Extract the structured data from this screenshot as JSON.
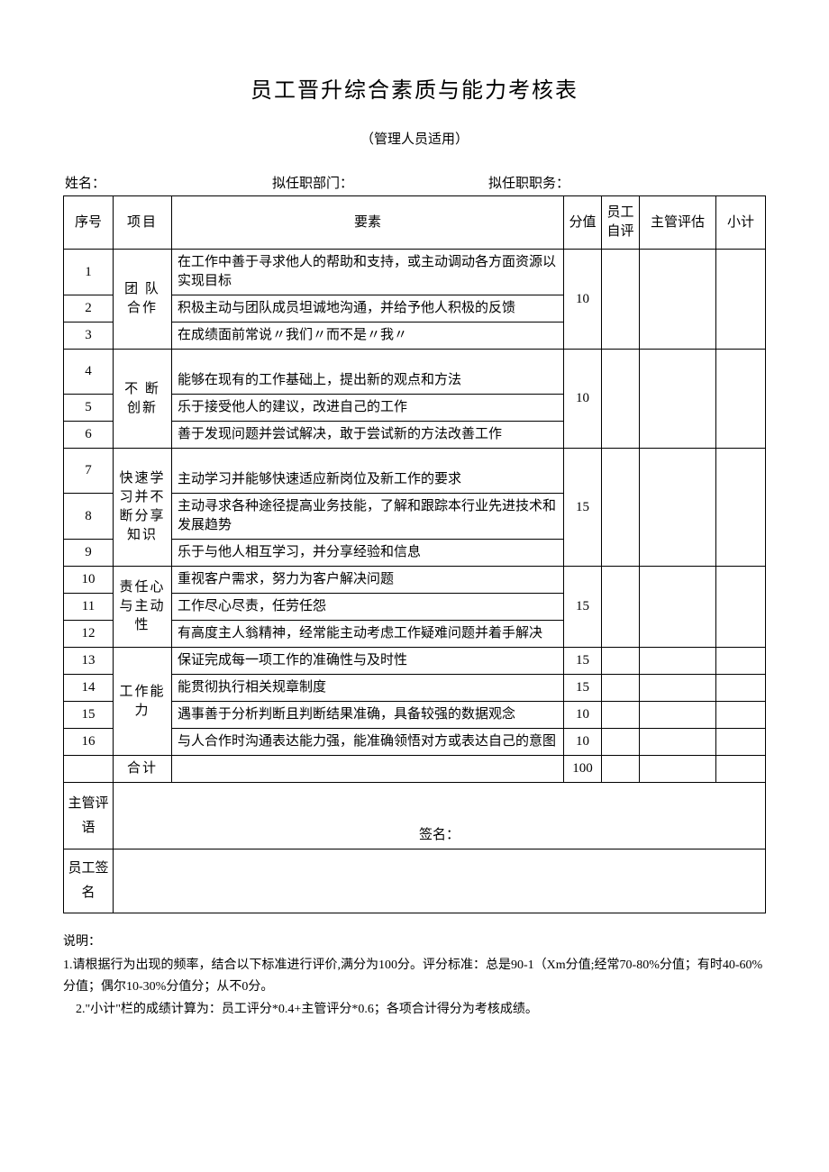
{
  "page": {
    "title": "员工晋升综合素质与能力考核表",
    "subtitle": "（管理人员适用）",
    "bg_color": "#ffffff",
    "border_color": "#000000",
    "text_color": "#000000"
  },
  "form_header": {
    "name_label": "姓名：",
    "dept_label": "拟任职部门：",
    "duty_label": "拟任职职务："
  },
  "columns": {
    "seq": "序号",
    "category": "项目",
    "element": "要素",
    "score": "分值",
    "self_eval": "员工自评",
    "mgr_eval": "主管评估",
    "subtotal": "小计"
  },
  "categories": [
    {
      "name": "团 队 合作",
      "score": "10",
      "rows": [
        {
          "seq": "1",
          "element": "在工作中善于寻求他人的帮助和支持，或主动调动各方面资源以实现目标"
        },
        {
          "seq": "2",
          "element": "积极主动与团队成员坦诚地沟通，并给予他人积极的反馈"
        },
        {
          "seq": "3",
          "element": "在成绩面前常说〃我们〃而不是〃我〃"
        }
      ]
    },
    {
      "name": "不 断 创新",
      "score": "10",
      "rows": [
        {
          "seq": "4",
          "element": "能够在现有的工作基础上，提出新的观点和方法",
          "pad_top": true
        },
        {
          "seq": "5",
          "element": "乐于接受他人的建议，改进自己的工作"
        },
        {
          "seq": "6",
          "element": "善于发现问题并尝试解决，敢于尝试新的方法改善工作"
        }
      ]
    },
    {
      "name": "快速学习并不断分享知识",
      "score": "15",
      "rows": [
        {
          "seq": "7",
          "element": "主动学习并能够快速适应新岗位及新工作的要求",
          "pad_top": true
        },
        {
          "seq": "8",
          "element": "主动寻求各种途径提高业务技能，了解和跟踪本行业先进技术和发展趋势"
        },
        {
          "seq": "9",
          "element": "乐于与他人相互学习，并分享经验和信息"
        }
      ]
    },
    {
      "name": "责任心与主动性",
      "score": "15",
      "rows": [
        {
          "seq": "10",
          "element": "重视客户需求，努力为客户解决问题"
        },
        {
          "seq": "11",
          "element": "工作尽心尽责，任劳任怨"
        },
        {
          "seq": "12",
          "element": "有高度主人翁精神，经常能主动考虑工作疑难问题并着手解决"
        }
      ]
    }
  ],
  "ability_rows": [
    {
      "seq": "13",
      "element": "保证完成每一项工作的准确性与及时性",
      "score": "15"
    },
    {
      "seq": "14",
      "element": "能贯彻执行相关规章制度",
      "score": "15"
    },
    {
      "seq": "15",
      "element": "遇事善于分析判断且判断结果准确，具备较强的数据观念",
      "score": "10"
    },
    {
      "seq": "16",
      "element": "与人合作时沟通表达能力强，能准确领悟对方或表达自己的意图",
      "score": "10"
    }
  ],
  "ability_category": "工作能力",
  "total_label": "合计",
  "total_score": "100",
  "signature": {
    "mgr_comment_label": "主管评语",
    "sign_label": "签名：",
    "emp_sign_label": "员工签名"
  },
  "notes": {
    "heading": "说明：",
    "line1": "1.请根据行为出现的频率，结合以下标准进行评价,满分为100分。评分标准：总是90-1（Xm分值;经常70-80%分值；有时40-60%分值；偶尔10-30%分值分；从不0分。",
    "line2": "2.\"小计\"栏的成绩计算为：员工评分*0.4+主管评分*0.6；各项合计得分为考核成绩。"
  }
}
